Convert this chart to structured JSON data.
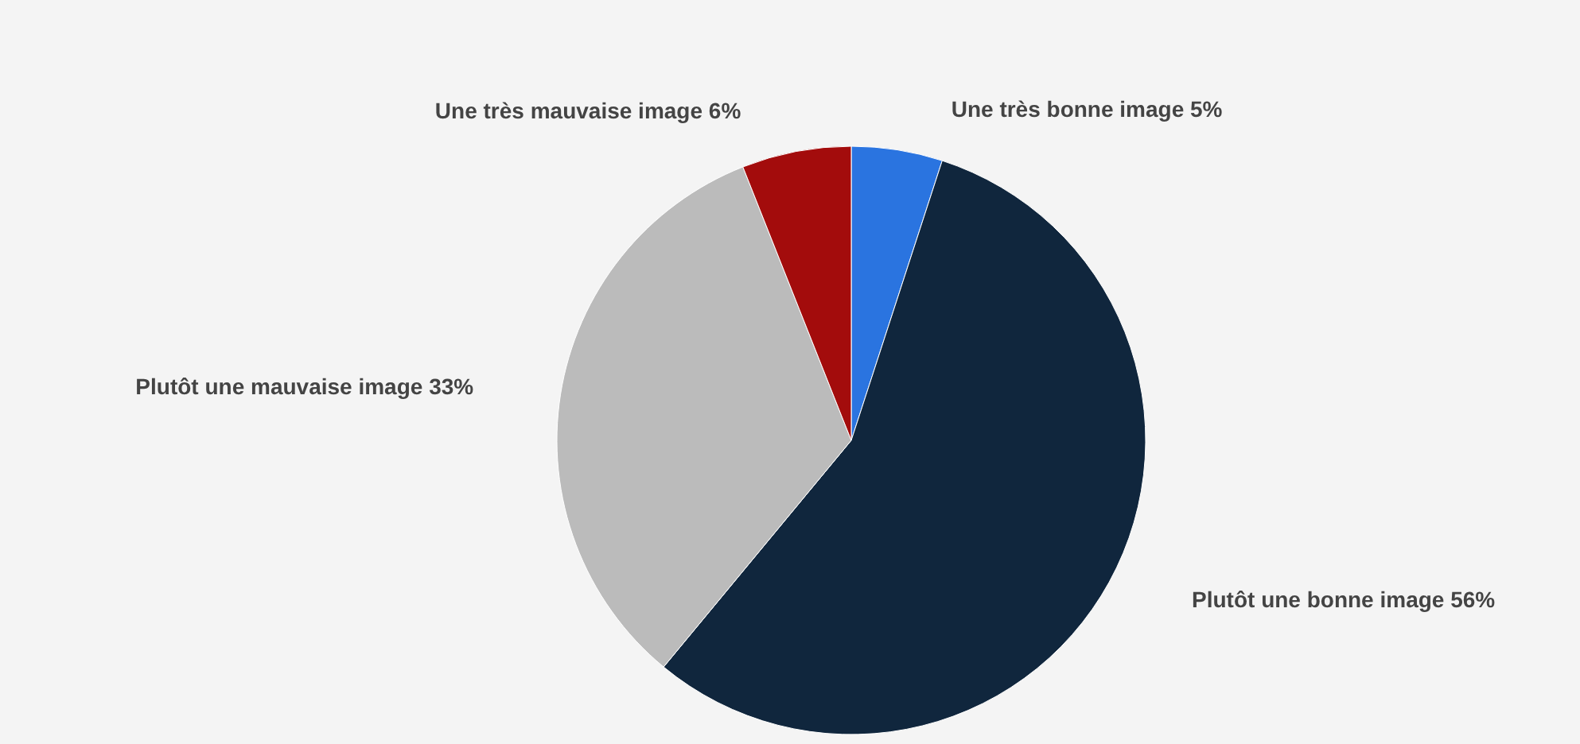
{
  "chart_data": {
    "type": "pie",
    "categories": [
      "Une très bonne image",
      "Plutôt une bonne image",
      "Plutôt une mauvaise image",
      "Une très mauvaise image"
    ],
    "values": [
      5,
      56,
      33,
      6
    ],
    "colors": [
      "#2a74e0",
      "#10263d",
      "#bbbbbb",
      "#a30c0c"
    ],
    "value_labels": [
      "5%",
      "56%",
      "33%",
      "6%"
    ]
  }
}
